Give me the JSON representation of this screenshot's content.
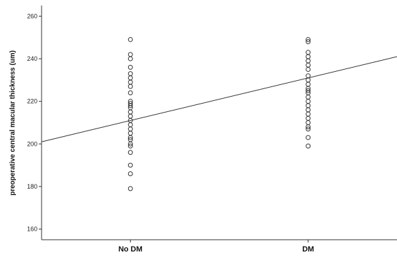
{
  "chart_data": {
    "type": "scatter",
    "title": "",
    "xlabel": "",
    "ylabel": "preoperative central macular thickness (um)",
    "categories": [
      "No DM",
      "DM"
    ],
    "ylim": [
      155,
      265
    ],
    "yticks": [
      160,
      180,
      200,
      220,
      240,
      260
    ],
    "grid": false,
    "series": [
      {
        "category": "No DM",
        "values": [
          249,
          242,
          240,
          236,
          233,
          231,
          229,
          227,
          224,
          220,
          219,
          218,
          217,
          215,
          213,
          211,
          209,
          207,
          205,
          203,
          202,
          200,
          199,
          196,
          190,
          186,
          179
        ]
      },
      {
        "category": "DM",
        "values": [
          249,
          248,
          243,
          241,
          239,
          237,
          235,
          232,
          230,
          228,
          226,
          225,
          224,
          222,
          220,
          218,
          216,
          214,
          212,
          210,
          208,
          207,
          203,
          199
        ]
      }
    ],
    "fit_line": {
      "x_start": 0,
      "y_start": 211,
      "x_end": 1,
      "y_end": 231
    }
  }
}
